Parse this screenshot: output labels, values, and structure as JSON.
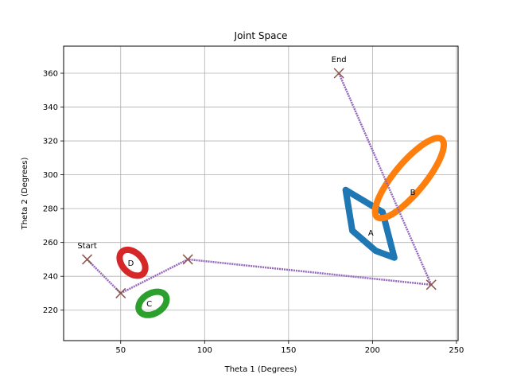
{
  "chart_data": {
    "type": "scatter",
    "title": "Joint Space",
    "xlabel": "Theta 1 (Degrees)",
    "ylabel": "Theta 2 (Degrees)",
    "xlim": [
      16,
      251
    ],
    "ylim": [
      202,
      376
    ],
    "xticks": [
      50,
      100,
      150,
      200,
      250
    ],
    "yticks": [
      220,
      240,
      260,
      280,
      300,
      320,
      340,
      360
    ],
    "grid": true,
    "colors": {
      "A": "#1f77b4",
      "B": "#ff7f0e",
      "C": "#2ca02c",
      "D": "#d62728",
      "path": "#9467bd",
      "waypoint": "#8c564b"
    },
    "obstacles": [
      {
        "label": "A",
        "vertices": [
          [
            184,
            291
          ],
          [
            206,
            278
          ],
          [
            213,
            251
          ],
          [
            202,
            255
          ],
          [
            188,
            267
          ]
        ]
      },
      {
        "label": "B",
        "ellipse": {
          "cx": 222,
          "cy": 298,
          "rx": 9,
          "ry": 30,
          "angle_deg": -40
        }
      },
      {
        "label": "C",
        "ellipse": {
          "cx": 69,
          "cy": 224,
          "rx": 9,
          "ry": 6,
          "angle_deg": 30
        }
      },
      {
        "label": "D",
        "ellipse": {
          "cx": 57,
          "cy": 248,
          "rx": 6,
          "ry": 9,
          "angle_deg": 45
        }
      }
    ],
    "path": [
      [
        30,
        250
      ],
      [
        50,
        230
      ],
      [
        90,
        250
      ],
      [
        235,
        235
      ],
      [
        180,
        360
      ]
    ],
    "waypoints": [
      [
        30,
        250
      ],
      [
        50,
        230
      ],
      [
        90,
        250
      ],
      [
        235,
        235
      ],
      [
        180,
        360
      ]
    ],
    "annotations": [
      {
        "text": "Start",
        "x": 30,
        "y": 250
      },
      {
        "text": "End",
        "x": 180,
        "y": 360
      },
      {
        "text": "A",
        "x": 199,
        "y": 266
      },
      {
        "text": "B",
        "x": 224,
        "y": 290
      },
      {
        "text": "C",
        "x": 67,
        "y": 224
      },
      {
        "text": "D",
        "x": 56,
        "y": 248
      }
    ]
  }
}
